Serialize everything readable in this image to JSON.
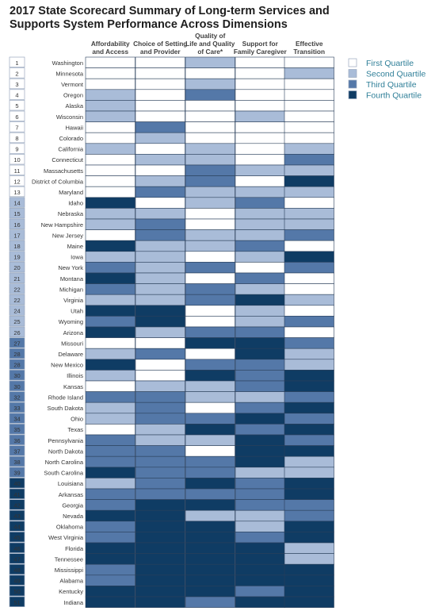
{
  "title": "2017 State Scorecard Summary of Long-term Services and Supports System Performance Across Dimensions",
  "chart_data": {
    "type": "heatmap",
    "columns": [
      "Affordability and Access",
      "Choice of Setting and Provider",
      "Quality of Life and Quality of Care*",
      "Support for Family Caregiver",
      "Effective Transition"
    ],
    "column_header_lines": [
      [
        "Affordability",
        "and Access"
      ],
      [
        "Choice of Setting",
        "and Provider"
      ],
      [
        "Quality of",
        "Life and Quality",
        "of Care*"
      ],
      [
        "Support for",
        "Family Caregiver"
      ],
      [
        "Effective",
        "Transition"
      ]
    ],
    "legend": [
      "First Quartile",
      "Second Quartile",
      "Third Quartile",
      "Fourth Quartile"
    ],
    "colors": [
      "#ffffff",
      "#a9bcd8",
      "#5478a8",
      "#0f3c64"
    ],
    "rows": [
      {
        "rank": "1",
        "state": "Washington",
        "q": [
          1,
          1,
          2,
          1,
          1
        ]
      },
      {
        "rank": "2",
        "state": "Minnesota",
        "q": [
          1,
          1,
          1,
          1,
          2
        ]
      },
      {
        "rank": "3",
        "state": "Vermont",
        "q": [
          1,
          1,
          2,
          1,
          1
        ]
      },
      {
        "rank": "4",
        "state": "Oregon",
        "q": [
          2,
          1,
          3,
          1,
          1
        ]
      },
      {
        "rank": "5",
        "state": "Alaska",
        "q": [
          2,
          1,
          1,
          1,
          1
        ]
      },
      {
        "rank": "6",
        "state": "Wisconsin",
        "q": [
          2,
          1,
          1,
          2,
          1
        ]
      },
      {
        "rank": "7",
        "state": "Hawaii",
        "q": [
          1,
          3,
          1,
          1,
          1
        ]
      },
      {
        "rank": "8",
        "state": "Colorado",
        "q": [
          1,
          2,
          1,
          1,
          1
        ]
      },
      {
        "rank": "9",
        "state": "California",
        "q": [
          2,
          1,
          2,
          1,
          2
        ]
      },
      {
        "rank": "10",
        "state": "Connecticut",
        "q": [
          1,
          2,
          2,
          1,
          3
        ]
      },
      {
        "rank": "11",
        "state": "Massachusetts",
        "q": [
          1,
          1,
          3,
          2,
          2
        ]
      },
      {
        "rank": "12",
        "state": "District of Columbia",
        "q": [
          1,
          2,
          3,
          1,
          4
        ]
      },
      {
        "rank": "13",
        "state": "Maryland",
        "q": [
          1,
          3,
          2,
          2,
          2
        ]
      },
      {
        "rank": "14",
        "state": "Idaho",
        "q": [
          4,
          1,
          2,
          3,
          1
        ]
      },
      {
        "rank": "15",
        "state": "Nebraska",
        "q": [
          2,
          2,
          1,
          2,
          2
        ]
      },
      {
        "rank": "16",
        "state": "New Hampshire",
        "q": [
          2,
          3,
          1,
          2,
          2
        ]
      },
      {
        "rank": "17",
        "state": "New Jersey",
        "q": [
          1,
          3,
          2,
          2,
          3
        ]
      },
      {
        "rank": "18",
        "state": "Maine",
        "q": [
          4,
          2,
          2,
          3,
          1
        ]
      },
      {
        "rank": "19",
        "state": "Iowa",
        "q": [
          2,
          2,
          1,
          2,
          4
        ]
      },
      {
        "rank": "20",
        "state": "New York",
        "q": [
          3,
          2,
          3,
          1,
          3
        ]
      },
      {
        "rank": "21",
        "state": "Montana",
        "q": [
          4,
          2,
          1,
          3,
          1
        ]
      },
      {
        "rank": "22",
        "state": "Michigan",
        "q": [
          3,
          2,
          3,
          2,
          1
        ]
      },
      {
        "rank": "22",
        "state": "Virginia",
        "q": [
          2,
          2,
          3,
          4,
          2
        ]
      },
      {
        "rank": "24",
        "state": "Utah",
        "q": [
          4,
          4,
          1,
          2,
          1
        ]
      },
      {
        "rank": "25",
        "state": "Wyoming",
        "q": [
          3,
          4,
          1,
          2,
          3
        ]
      },
      {
        "rank": "26",
        "state": "Arizona",
        "q": [
          4,
          2,
          3,
          3,
          1
        ]
      },
      {
        "rank": "27",
        "state": "Missouri",
        "q": [
          1,
          1,
          4,
          4,
          3
        ]
      },
      {
        "rank": "28",
        "state": "Delaware",
        "q": [
          2,
          3,
          1,
          4,
          2
        ]
      },
      {
        "rank": "28",
        "state": "New Mexico",
        "q": [
          4,
          1,
          3,
          3,
          2
        ]
      },
      {
        "rank": "30",
        "state": "Illinois",
        "q": [
          2,
          1,
          4,
          3,
          4
        ]
      },
      {
        "rank": "30",
        "state": "Kansas",
        "q": [
          1,
          2,
          2,
          3,
          4
        ]
      },
      {
        "rank": "32",
        "state": "Rhode Island",
        "q": [
          3,
          3,
          2,
          2,
          3
        ]
      },
      {
        "rank": "33",
        "state": "South Dakota",
        "q": [
          2,
          3,
          1,
          3,
          4
        ]
      },
      {
        "rank": "34",
        "state": "Ohio",
        "q": [
          2,
          3,
          3,
          4,
          3
        ]
      },
      {
        "rank": "35",
        "state": "Texas",
        "q": [
          1,
          2,
          4,
          3,
          4
        ]
      },
      {
        "rank": "36",
        "state": "Pennsylvania",
        "q": [
          3,
          2,
          2,
          4,
          3
        ]
      },
      {
        "rank": "37",
        "state": "North Dakota",
        "q": [
          3,
          3,
          1,
          4,
          4
        ]
      },
      {
        "rank": "38",
        "state": "North Carolina",
        "q": [
          3,
          3,
          3,
          4,
          2
        ]
      },
      {
        "rank": "39",
        "state": "South Carolina",
        "q": [
          4,
          3,
          3,
          2,
          2
        ]
      },
      {
        "rank": "40",
        "state": "Louisiana",
        "q": [
          2,
          3,
          4,
          3,
          4
        ]
      },
      {
        "rank": "41",
        "state": "Arkansas",
        "q": [
          3,
          3,
          3,
          3,
          4
        ]
      },
      {
        "rank": "42",
        "state": "Georgia",
        "q": [
          3,
          4,
          4,
          3,
          3
        ]
      },
      {
        "rank": "43",
        "state": "Nevada",
        "q": [
          4,
          4,
          2,
          2,
          3
        ]
      },
      {
        "rank": "44",
        "state": "Oklahoma",
        "q": [
          3,
          4,
          4,
          2,
          4
        ]
      },
      {
        "rank": "45",
        "state": "West Virginia",
        "q": [
          3,
          4,
          4,
          3,
          4
        ]
      },
      {
        "rank": "46",
        "state": "Florida",
        "q": [
          4,
          4,
          4,
          4,
          2
        ]
      },
      {
        "rank": "47",
        "state": "Tennessee",
        "q": [
          4,
          4,
          4,
          4,
          2
        ]
      },
      {
        "rank": "48",
        "state": "Mississippi",
        "q": [
          3,
          4,
          4,
          4,
          4
        ]
      },
      {
        "rank": "49",
        "state": "Alabama",
        "q": [
          3,
          4,
          4,
          4,
          4
        ]
      },
      {
        "rank": "50",
        "state": "Kentucky",
        "q": [
          4,
          4,
          4,
          3,
          4
        ]
      },
      {
        "rank": "51",
        "state": "Indiana",
        "q": [
          4,
          4,
          3,
          4,
          4
        ]
      }
    ]
  }
}
